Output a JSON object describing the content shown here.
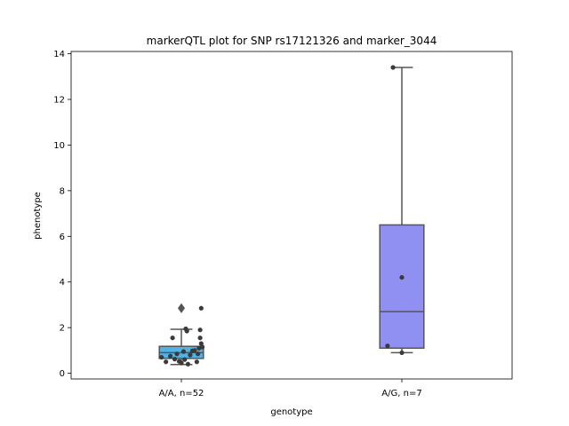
{
  "chart_data": {
    "type": "box",
    "title": "markerQTL plot for SNP rs17121326 and marker_3044",
    "xlabel": "genotype",
    "ylabel": "phenotype",
    "ylim": [
      -0.25,
      14.1
    ],
    "yticks": [
      0,
      2,
      4,
      6,
      8,
      10,
      12,
      14
    ],
    "categories": [
      "A/A, n=52",
      "A/G, n=7"
    ],
    "boxes": [
      {
        "category": "A/A, n=52",
        "color": "#4fb3e6",
        "whisker_low": 0.38,
        "q1": 0.65,
        "median": 0.9,
        "q3": 1.18,
        "whisker_high": 1.93,
        "outliers": [
          2.85
        ]
      },
      {
        "category": "A/G, n=7",
        "color": "#9090f2",
        "whisker_low": 0.9,
        "q1": 1.1,
        "median": 2.7,
        "q3": 6.5,
        "whisker_high": 13.4,
        "outliers": []
      }
    ],
    "points": [
      {
        "category": "A/A, n=52",
        "jitter": -0.09,
        "y": 0.7
      },
      {
        "category": "A/A, n=52",
        "jitter": -0.07,
        "y": 0.5
      },
      {
        "category": "A/A, n=52",
        "jitter": -0.05,
        "y": 0.75
      },
      {
        "category": "A/A, n=52",
        "jitter": -0.04,
        "y": 1.55
      },
      {
        "category": "A/A, n=52",
        "jitter": -0.03,
        "y": 0.62
      },
      {
        "category": "A/A, n=52",
        "jitter": -0.02,
        "y": 0.85
      },
      {
        "category": "A/A, n=52",
        "jitter": -0.01,
        "y": 0.52
      },
      {
        "category": "A/A, n=52",
        "jitter": 0.0,
        "y": 0.45
      },
      {
        "category": "A/A, n=52",
        "jitter": 0.01,
        "y": 0.95
      },
      {
        "category": "A/A, n=52",
        "jitter": 0.015,
        "y": 0.6
      },
      {
        "category": "A/A, n=52",
        "jitter": 0.02,
        "y": 1.95
      },
      {
        "category": "A/A, n=52",
        "jitter": 0.025,
        "y": 1.85
      },
      {
        "category": "A/A, n=52",
        "jitter": 0.03,
        "y": 0.4
      },
      {
        "category": "A/A, n=52",
        "jitter": 0.04,
        "y": 0.8
      },
      {
        "category": "A/A, n=52",
        "jitter": 0.05,
        "y": 0.98
      },
      {
        "category": "A/A, n=52",
        "jitter": 0.06,
        "y": 1.0
      },
      {
        "category": "A/A, n=52",
        "jitter": 0.07,
        "y": 0.5
      },
      {
        "category": "A/A, n=52",
        "jitter": 0.075,
        "y": 0.85
      },
      {
        "category": "A/A, n=52",
        "jitter": 0.08,
        "y": 1.1
      },
      {
        "category": "A/A, n=52",
        "jitter": 0.085,
        "y": 1.55
      },
      {
        "category": "A/A, n=52",
        "jitter": 0.09,
        "y": 1.3
      },
      {
        "category": "A/A, n=52",
        "jitter": 0.095,
        "y": 1.15
      },
      {
        "category": "A/A, n=52",
        "jitter": 0.09,
        "y": 2.85
      },
      {
        "category": "A/A, n=52",
        "jitter": 0.085,
        "y": 1.9
      },
      {
        "category": "A/G, n=7",
        "jitter": -0.04,
        "y": 13.4
      },
      {
        "category": "A/G, n=7",
        "jitter": 0.0,
        "y": 4.2
      },
      {
        "category": "A/G, n=7",
        "jitter": -0.065,
        "y": 1.2
      },
      {
        "category": "A/G, n=7",
        "jitter": 0.0,
        "y": 0.9
      }
    ],
    "point_color": "#3a3a3a",
    "line_color": "#555555",
    "grid": false,
    "legend": "none"
  }
}
